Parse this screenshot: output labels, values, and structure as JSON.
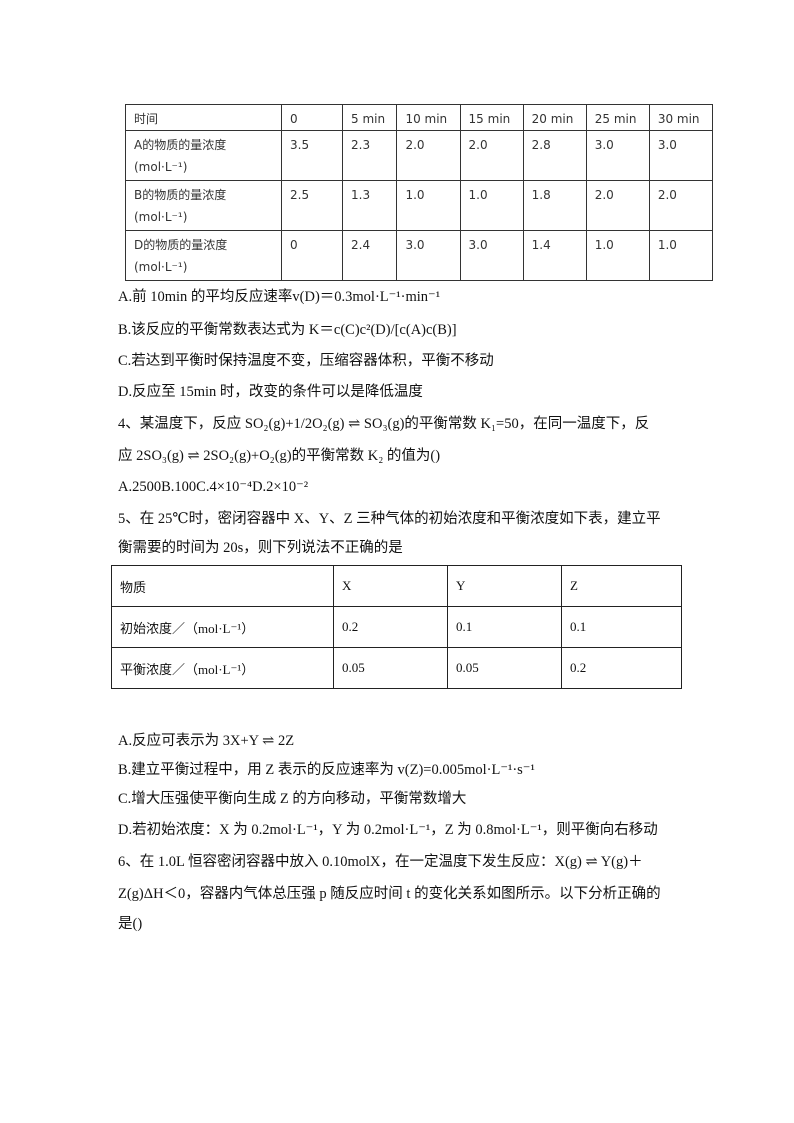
{
  "table1": {
    "header": [
      "时间",
      "0",
      "5 min",
      "10 min",
      "15 min",
      "20 min",
      "25 min",
      "30 min"
    ],
    "rows": [
      {
        "label": "A的物质的量浓度(mol·L⁻¹)",
        "values": [
          "3.5",
          "2.3",
          "2.0",
          "2.0",
          "2.8",
          "3.0",
          "3.0"
        ]
      },
      {
        "label": "B的物质的量浓度(mol·L⁻¹)",
        "values": [
          "2.5",
          "1.3",
          "1.0",
          "1.0",
          "1.8",
          "2.0",
          "2.0"
        ]
      },
      {
        "label": "D的物质的量浓度(mol·L⁻¹)",
        "values": [
          "0",
          "2.4",
          "3.0",
          "3.0",
          "1.4",
          "1.0",
          "1.0"
        ]
      }
    ]
  },
  "lines1": [
    "A.前 10min  的平均反应速率v(D)＝0.3mol·L⁻¹·min⁻¹",
    "B.该反应的平衡常数表达式为 K＝c(C)c²(D)/[c(A)c(B)]",
    "C.若达到平衡时保持温度不变，压缩容器体积，平衡不移动",
    "D.反应至 15min 时，改变的条件可以是降低温度",
    "4、某温度下，反应 SO₂(g)+1/2O₂(g) ⇌ SO₃(g)的平衡常数 K₁=50，在同一温度下，反",
    "应 2SO₃(g) ⇌ 2SO₂(g)+O₂(g)的平衡常数 K₂ 的值为()",
    "A.2500B.100C.4×10⁻⁴D.2×10⁻²",
    "5、在 25℃时，密闭容器中 X、Y、Z 三种气体的初始浓度和平衡浓度如下表，建立平",
    "衡需要的时间为 20s，则下列说法不正确的是"
  ],
  "table2": {
    "header": [
      "物质",
      "X",
      "Y",
      "Z"
    ],
    "rows": [
      [
        "初始浓度／（mol·L⁻¹）",
        "0.2",
        "0.1",
        "0.1"
      ],
      [
        "平衡浓度／（mol·L⁻¹）",
        "0.05",
        "0.05",
        "0.2"
      ]
    ]
  },
  "lines2": [
    "A.反应可表示为 3X+Y ⇌ 2Z",
    "B.建立平衡过程中，用 Z 表示的反应速率为 v(Z)=0.005mol·L⁻¹·s⁻¹",
    "C.增大压强使平衡向生成 Z 的方向移动，平衡常数增大",
    "D.若初始浓度：X 为 0.2mol·L⁻¹，Y 为 0.2mol·L⁻¹，Z 为 0.8mol·L⁻¹，则平衡向右移动",
    "6、在 1.0L 恒容密闭容器中放入 0.10molX，在一定温度下发生反应：X(g) ⇌ Y(g)＋",
    "Z(g)ΔH＜0，容器内气体总压强 p 随反应时间 t 的变化关系如图所示。以下分析正确的",
    "是()"
  ]
}
